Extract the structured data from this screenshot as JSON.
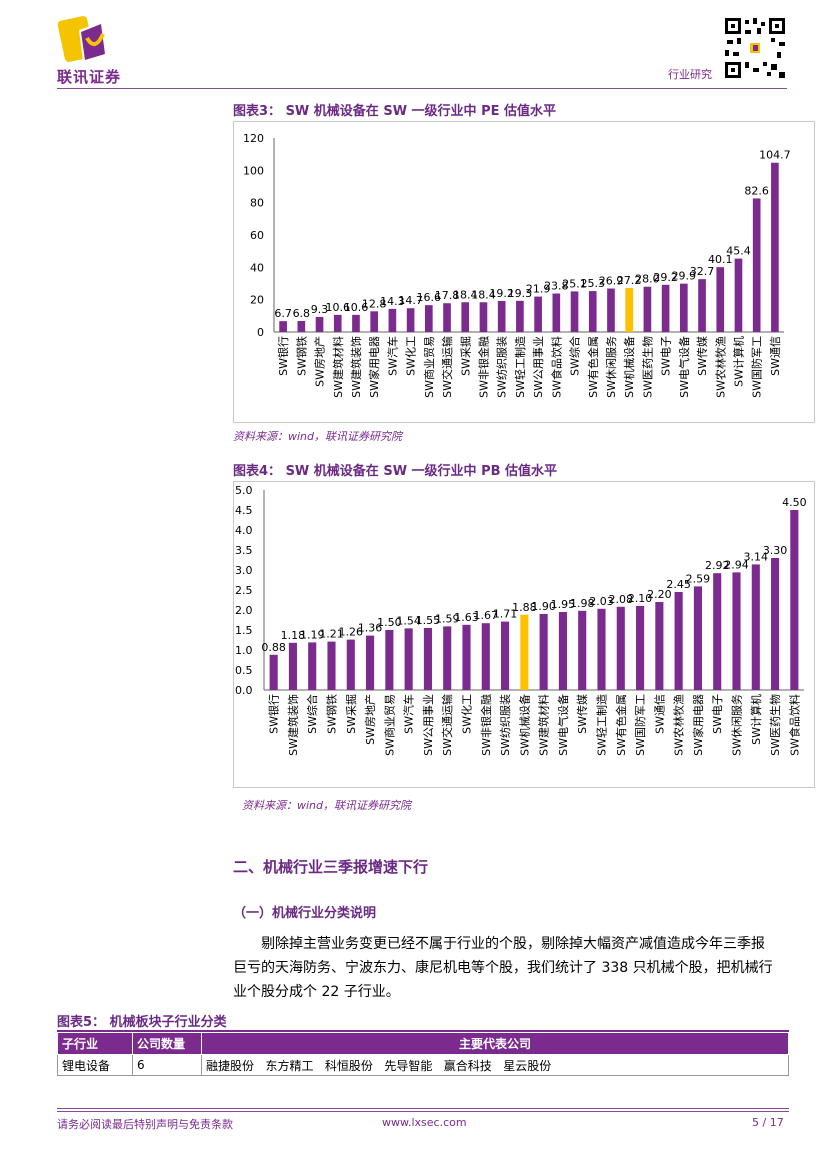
{
  "header": {
    "company": "联讯证券",
    "category": "行业研究",
    "colors": {
      "brand": "#7b2a8e",
      "bar": "#7b2a8e",
      "highlight": "#ffc000"
    }
  },
  "figure3": {
    "title": "图表3：   SW 机械设备在 SW 一级行业中 PE 估值水平",
    "source": "资料来源：wind，联讯证券研究院"
  },
  "figure4": {
    "title": "图表4：   SW 机械设备在 SW 一级行业中 PB 估值水平",
    "source": "资料来源：wind，联讯证券研究院"
  },
  "chart_data": [
    {
      "type": "bar",
      "title": "SW 机械设备在 SW 一级行业中 PE 估值水平",
      "categories": [
        "SW银行",
        "SW钢铁",
        "SW房地产",
        "SW建筑材料",
        "SW建筑装饰",
        "SW家用电器",
        "SW汽车",
        "SW化工",
        "SW商业贸易",
        "SW交通运输",
        "SW采掘",
        "SW非银金融",
        "SW纺织服装",
        "SW轻工制造",
        "SW公用事业",
        "SW食品饮料",
        "SW综合",
        "SW有色金属",
        "SW休闲服务",
        "SW机械设备",
        "SW医药生物",
        "SW电子",
        "SW电气设备",
        "SW传媒",
        "SW农林牧渔",
        "SW计算机",
        "SW国防军工",
        "SW通信"
      ],
      "values": [
        6.7,
        6.8,
        9.3,
        10.6,
        10.6,
        12.8,
        14.3,
        14.7,
        16.6,
        17.8,
        18.4,
        18.4,
        19.2,
        19.3,
        21.9,
        23.8,
        25.1,
        25.3,
        26.9,
        27.2,
        28.0,
        29.2,
        29.9,
        32.7,
        40.1,
        45.4,
        82.6,
        104.7
      ],
      "labels": [
        "6.7",
        "6.8",
        "9.3",
        "10.6",
        "10.6",
        "12.8",
        "14.3",
        "14.7",
        "16.6",
        "17.8",
        "18.4",
        "18.4",
        "19.2",
        "19.3",
        "21.9",
        "23.8",
        "25.1",
        "25.3",
        "26.9",
        "27.2",
        "28.0",
        "29.2",
        "29.9",
        "32.7",
        "40.1",
        "45.4",
        "82.6",
        "104.7"
      ],
      "highlight_index": 19,
      "yticks": [
        "0",
        "20",
        "40",
        "60",
        "80",
        "100",
        "120"
      ],
      "ylim": [
        0,
        120
      ]
    },
    {
      "type": "bar",
      "title": "SW 机械设备在 SW 一级行业中 PB 估值水平",
      "categories": [
        "SW银行",
        "SW建筑装饰",
        "SW综合",
        "SW钢铁",
        "SW采掘",
        "SW房地产",
        "SW商业贸易",
        "SW汽车",
        "SW公用事业",
        "SW交通运输",
        "SW化工",
        "SW非银金融",
        "SW纺织服装",
        "SW机械设备",
        "SW建筑材料",
        "SW电气设备",
        "SW传媒",
        "SW轻工制造",
        "SW有色金属",
        "SW国防军工",
        "SW通信",
        "SW农林牧渔",
        "SW家用电器",
        "SW电子",
        "SW休闲服务",
        "SW计算机",
        "SW医药生物",
        "SW食品饮料"
      ],
      "values": [
        0.88,
        1.18,
        1.19,
        1.21,
        1.26,
        1.36,
        1.5,
        1.54,
        1.55,
        1.59,
        1.63,
        1.67,
        1.71,
        1.88,
        1.9,
        1.95,
        1.98,
        2.03,
        2.08,
        2.1,
        2.2,
        2.45,
        2.59,
        2.92,
        2.94,
        3.14,
        3.3,
        4.5
      ],
      "labels": [
        "0.88",
        "1.18",
        "1.19",
        "1.21",
        "1.26",
        "1.36",
        "1.50",
        "1.54",
        "1.55",
        "1.59",
        "1.63",
        "1.67",
        "1.71",
        "1.88",
        "1.90",
        "1.95",
        "1.98",
        "2.03",
        "2.08",
        "2.10",
        "2.20",
        "2.45",
        "2.59",
        "2.92",
        "2.94",
        "3.14",
        "3.30",
        "4.50"
      ],
      "highlight_index": 13,
      "yticks": [
        "0.0",
        "0.5",
        "1.0",
        "1.5",
        "2.0",
        "2.5",
        "3.0",
        "3.5",
        "4.0",
        "4.5",
        "5.0"
      ],
      "ylim": [
        0,
        5
      ]
    }
  ],
  "section2": {
    "heading": "二、机械行业三季报增速下行",
    "sub_heading": "（一）机械行业分类说明",
    "paragraph_line1": "剔除掉主营业务变更已经不属于行业的个股，剔除掉大幅资产减值造成今年三季报",
    "paragraph_line2": "巨亏的天海防务、宁波东力、康尼机电等个股，我们统计了 338 只机械个股，把机械行",
    "paragraph_line3": "业个股分成个 22 子行业。"
  },
  "figure5": {
    "title": "图表5：   机械板块子行业分类",
    "headers": [
      "子行业",
      "公司数量",
      "主要代表公司"
    ],
    "rows": [
      [
        "锂电设备",
        "6",
        "融捷股份   东方精工   科恒股份   先导智能   赢合科技   星云股份"
      ]
    ]
  },
  "footer": {
    "disclaimer": "请务必阅读最后特别声明与免责条款",
    "website": "www.lxsec.com",
    "page": "5 / 17"
  }
}
